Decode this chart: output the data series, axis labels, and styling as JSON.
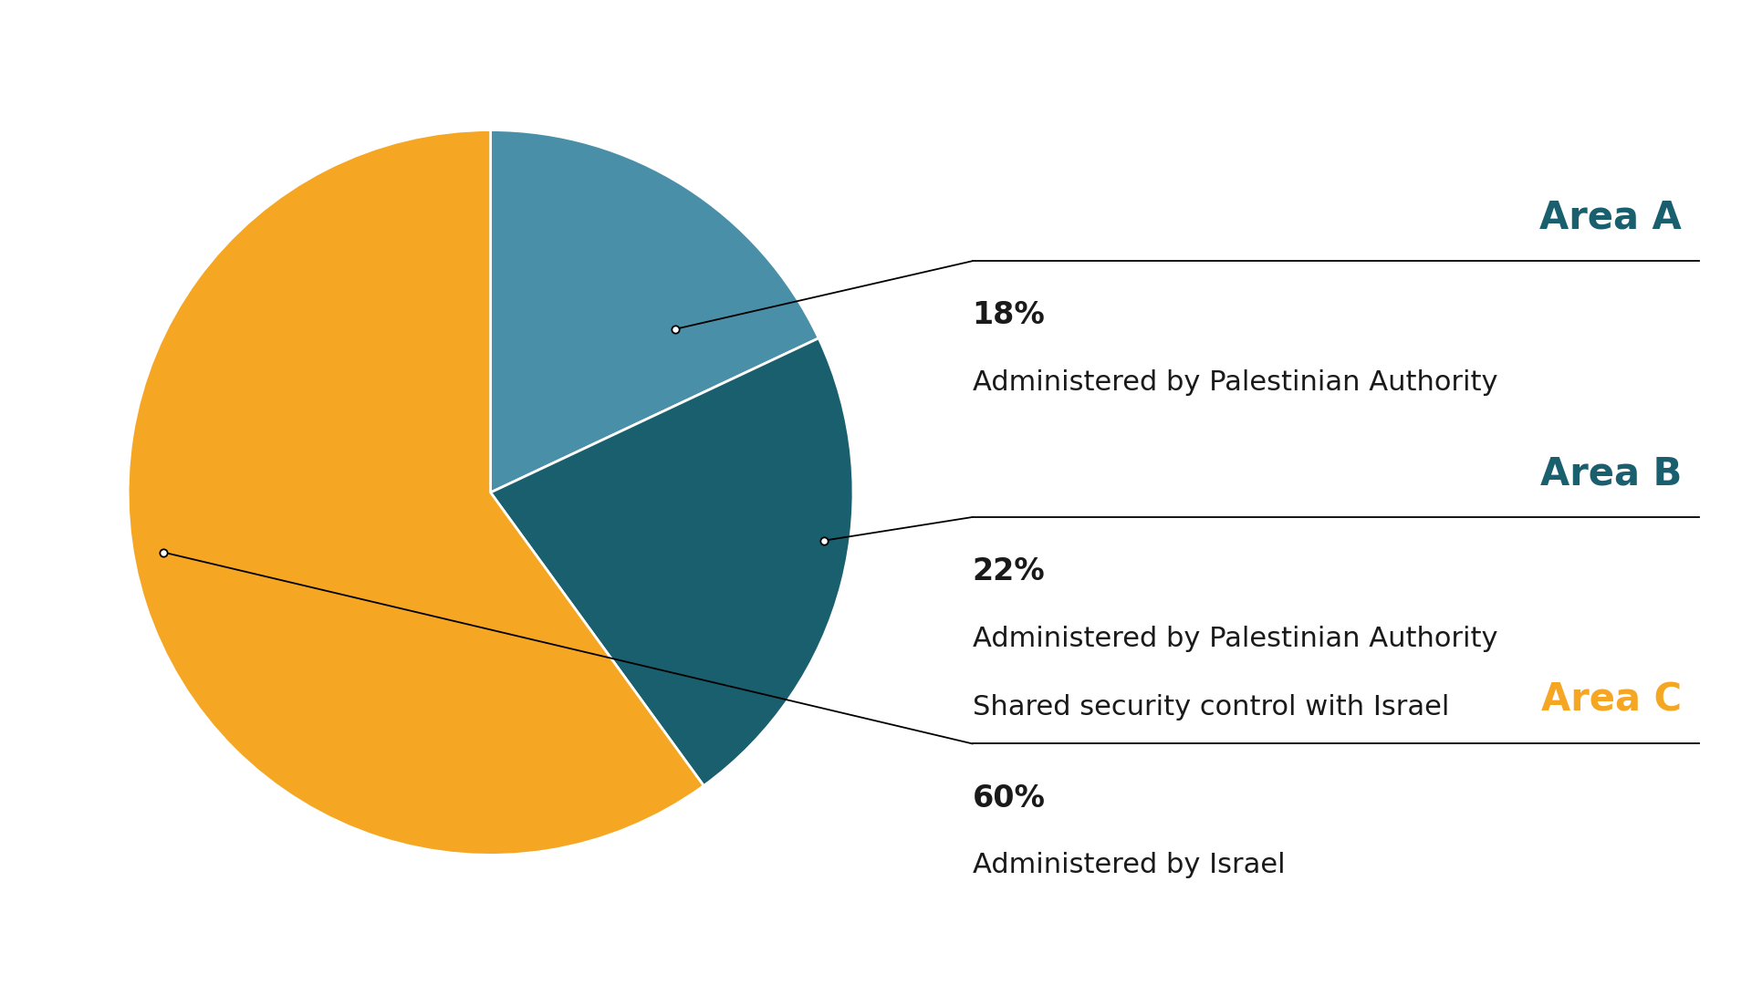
{
  "slices": [
    18,
    22,
    60
  ],
  "colors": [
    "#4a8fa8",
    "#1a5f6e",
    "#f5a623"
  ],
  "labels": [
    "Area A",
    "Area B",
    "Area C"
  ],
  "label_colors": [
    "#1a5f6e",
    "#1a5f6e",
    "#f5a623"
  ],
  "percentages": [
    "18%",
    "22%",
    "60%"
  ],
  "descriptions": [
    [
      "Administered by Palestinian Authority"
    ],
    [
      "Administered by Palestinian Authority",
      "Shared security control with Israel"
    ],
    [
      "Administered by Israel"
    ]
  ],
  "background_color": "#ffffff",
  "start_angle": 90
}
